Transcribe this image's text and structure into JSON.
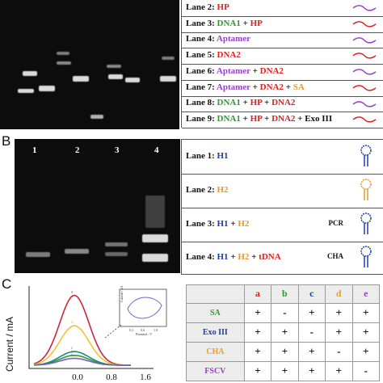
{
  "panelA": {
    "legend": [
      {
        "segments": [
          {
            "t": "Lane 2: ",
            "c": "k"
          },
          {
            "t": "H",
            "c": "r"
          },
          {
            "t": "P",
            "c": "r"
          }
        ],
        "icon": "hp-icon"
      },
      {
        "segments": [
          {
            "t": "Lane 3: ",
            "c": "k"
          },
          {
            "t": "DNA1",
            "c": "g"
          },
          {
            "t": " + ",
            "c": "k"
          },
          {
            "t": "HP",
            "c": "r"
          }
        ],
        "icon": "dna1-hp-icon"
      },
      {
        "segments": [
          {
            "t": "Lane 4: ",
            "c": "k"
          },
          {
            "t": "Aptamer",
            "c": "p"
          }
        ],
        "icon": "aptamer-icon"
      },
      {
        "segments": [
          {
            "t": "Lane 5: ",
            "c": "k"
          },
          {
            "t": "DNA2",
            "c": "r"
          }
        ],
        "icon": "dna2-icon"
      },
      {
        "segments": [
          {
            "t": "Lane 6: ",
            "c": "k"
          },
          {
            "t": "Aptamer",
            "c": "p"
          },
          {
            "t": " + ",
            "c": "k"
          },
          {
            "t": "DNA2",
            "c": "r"
          }
        ],
        "icon": "aptamer-dna2-icon"
      },
      {
        "segments": [
          {
            "t": "Lane 7: ",
            "c": "k"
          },
          {
            "t": "Aptamer",
            "c": "p"
          },
          {
            "t": " + ",
            "c": "k"
          },
          {
            "t": "DNA2",
            "c": "r"
          },
          {
            "t": " + ",
            "c": "k"
          },
          {
            "t": "SA",
            "c": "o"
          }
        ],
        "icon": "sa-complex-icon"
      },
      {
        "segments": [
          {
            "t": "Lane 8: ",
            "c": "k"
          },
          {
            "t": "DNA1",
            "c": "g"
          },
          {
            "t": " + ",
            "c": "k"
          },
          {
            "t": "HP",
            "c": "r"
          },
          {
            "t": " + ",
            "c": "k"
          },
          {
            "t": "DNA2",
            "c": "r"
          }
        ],
        "icon": "dna1-hp-dna2-icon"
      },
      {
        "segments": [
          {
            "t": "Lane 9: ",
            "c": "k"
          },
          {
            "t": "DNA1",
            "c": "g"
          },
          {
            "t": " + ",
            "c": "k"
          },
          {
            "t": "HP",
            "c": "r"
          },
          {
            "t": " + ",
            "c": "k"
          },
          {
            "t": "DNA2",
            "c": "r"
          },
          {
            "t": " + Exo III",
            "c": "k"
          }
        ],
        "icon": "exo-iii-icon"
      }
    ]
  },
  "panelB": {
    "letter": "B",
    "lane_numbers": [
      "1",
      "2",
      "3",
      "4"
    ],
    "legend": [
      {
        "segments": [
          {
            "t": "Lane 1: ",
            "c": "k"
          },
          {
            "t": "H1",
            "c": "b"
          }
        ]
      },
      {
        "segments": [
          {
            "t": "Lane 2: ",
            "c": "k"
          },
          {
            "t": "H2",
            "c": "o"
          }
        ]
      },
      {
        "segments": [
          {
            "t": "Lane 3: ",
            "c": "k"
          },
          {
            "t": "H1",
            "c": "b"
          },
          {
            "t": " + ",
            "c": "k"
          },
          {
            "t": "H2",
            "c": "o"
          }
        ],
        "note": "PCR"
      },
      {
        "segments": [
          {
            "t": "Lane 4: ",
            "c": "k"
          },
          {
            "t": "H1",
            "c": "b"
          },
          {
            "t": " + ",
            "c": "k"
          },
          {
            "t": "H2",
            "c": "o"
          },
          {
            "t": " + ",
            "c": "k"
          },
          {
            "t": "tDNA",
            "c": "r"
          }
        ],
        "note": "CHA"
      }
    ]
  },
  "panelC": {
    "letter": "C",
    "ylabel": "Current / mA",
    "xticks": [
      "0.0",
      "0.8",
      "1.6"
    ],
    "inset": {
      "ylabel": "Current / μA",
      "xlabel": "Potential / V",
      "xticks": [
        "0.2",
        "0.6",
        "1.0"
      ]
    },
    "curve_labels": [
      "a",
      "b",
      "c",
      "d",
      "e"
    ]
  },
  "chart_data": {
    "type": "line",
    "title": "",
    "xlabel": "",
    "ylabel": "Current / mA",
    "xticks": [
      "0.0",
      "0.8",
      "1.6"
    ],
    "series": [
      {
        "name": "a",
        "color": "#c8283c",
        "peak": 0.92
      },
      {
        "name": "d",
        "color": "#f0c232",
        "peak": 0.52
      },
      {
        "name": "c",
        "color": "#1e8a8a",
        "peak": 0.18
      },
      {
        "name": "b",
        "color": "#2a9a2a",
        "peak": 0.13
      },
      {
        "name": "e",
        "color": "#7a5fc9",
        "peak": 0.09
      }
    ]
  },
  "grid": {
    "columns": [
      {
        "label": "a",
        "color": "#d22222"
      },
      {
        "label": "b",
        "color": "#2a9a2a"
      },
      {
        "label": "c",
        "color": "#1d3ea8"
      },
      {
        "label": "d",
        "color": "#e7a02a"
      },
      {
        "label": "e",
        "color": "#9a3fc9"
      }
    ],
    "rows": [
      {
        "label": "SA",
        "color": "#2a9a2a",
        "cells": [
          "+",
          "-",
          "+",
          "+",
          "+"
        ]
      },
      {
        "label": "Exo III",
        "color": "#1d3ea8",
        "cells": [
          "+",
          "+",
          "-",
          "+",
          "+"
        ]
      },
      {
        "label": "CHA",
        "color": "#e7a02a",
        "cells": [
          "+",
          "+",
          "+",
          "-",
          "+"
        ]
      },
      {
        "label": "FSCV",
        "color": "#9a3fc9",
        "cells": [
          "+",
          "+",
          "+",
          "+",
          "-"
        ]
      }
    ]
  }
}
